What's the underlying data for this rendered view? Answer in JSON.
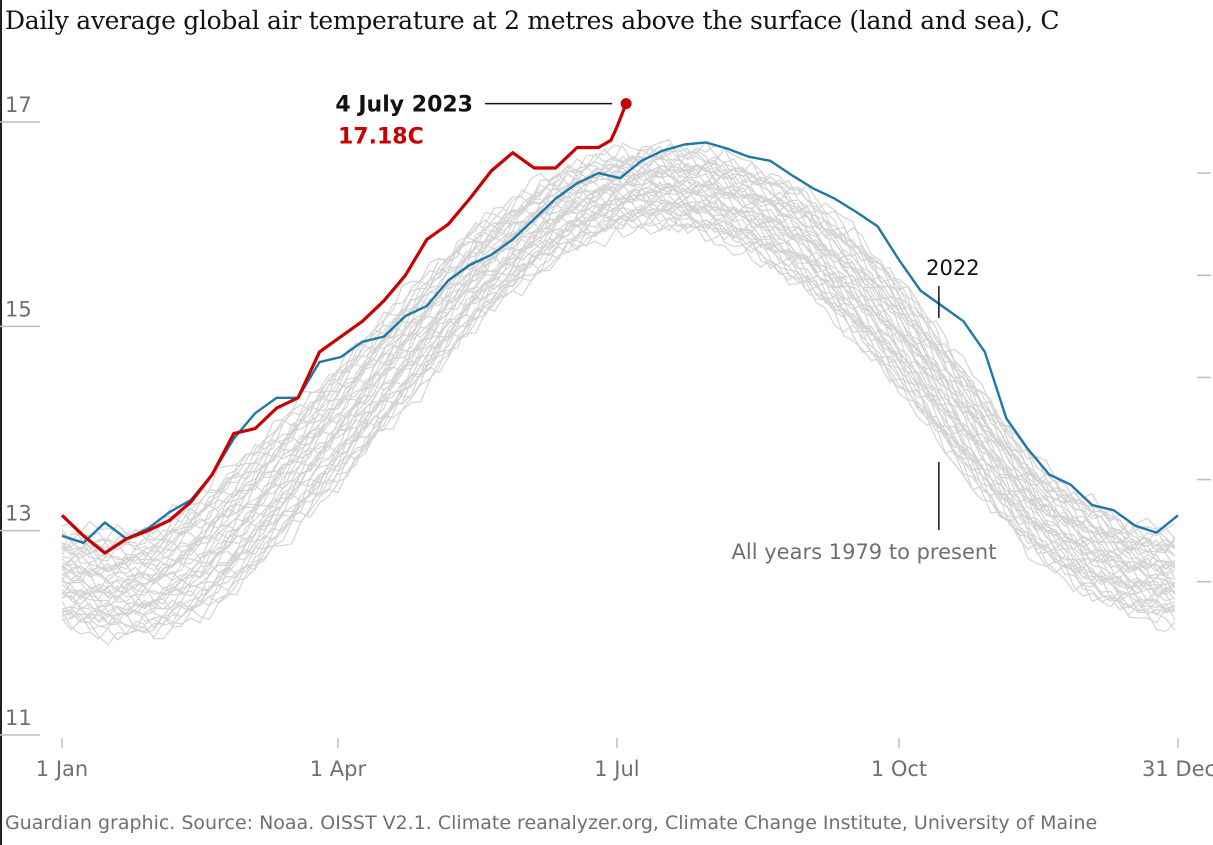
{
  "title": "Daily average global air temperature at 2 metres above the surface (land and sea), C",
  "source": "Guardian graphic. Source: Noaa. OISST V2.1. Climate reanalyzer.org, Climate Change Institute, University of Maine",
  "colors": {
    "background": "#ffffff",
    "history": "#d4d4d4",
    "year2022": "#1f78a8",
    "year2023": "#c70000",
    "axis": "#bdbdbd",
    "text": "#121212",
    "muted": "#707070"
  },
  "chart_data": {
    "type": "line",
    "title": "Daily average global air temperature at 2 metres above the surface (land and sea), C",
    "xlabel": "",
    "ylabel": "C",
    "xlim": [
      1,
      365
    ],
    "ylim": [
      11,
      17
    ],
    "y_ticks": [
      {
        "value": 17,
        "label": "17"
      },
      {
        "value": 15,
        "label": "15"
      },
      {
        "value": 13,
        "label": "13"
      },
      {
        "value": 11,
        "label": "11"
      }
    ],
    "right_ticks": [
      12.5,
      13.5,
      14.5,
      15.5,
      16.5
    ],
    "x_ticks": [
      {
        "day": 1,
        "label": "1 Jan"
      },
      {
        "day": 91,
        "label": "1 Apr"
      },
      {
        "day": 182,
        "label": "1 Jul"
      },
      {
        "day": 274,
        "label": "1 Oct"
      },
      {
        "day": 365,
        "label": "31 Dec"
      }
    ],
    "history_band": {
      "name": "All years 1979 to present",
      "count": 44,
      "days": [
        1,
        15,
        32,
        46,
        60,
        74,
        91,
        105,
        121,
        135,
        152,
        166,
        182,
        196,
        213,
        227,
        244,
        258,
        274,
        288,
        305,
        319,
        335,
        349,
        365
      ],
      "low": [
        12.1,
        12.0,
        12.0,
        12.15,
        12.5,
        12.95,
        13.45,
        13.95,
        14.5,
        15.0,
        15.45,
        15.75,
        15.95,
        16.0,
        15.9,
        15.7,
        15.35,
        14.95,
        14.4,
        13.85,
        13.2,
        12.75,
        12.4,
        12.2,
        12.1
      ],
      "high": [
        13.0,
        12.95,
        13.05,
        13.35,
        13.7,
        14.1,
        14.6,
        15.05,
        15.55,
        15.95,
        16.3,
        16.55,
        16.7,
        16.75,
        16.7,
        16.55,
        16.3,
        15.95,
        15.45,
        14.9,
        14.2,
        13.65,
        13.3,
        13.05,
        12.95
      ]
    },
    "series": [
      {
        "name": "2022",
        "color": "#1f78a8",
        "x": [
          1,
          8,
          15,
          22,
          29,
          36,
          43,
          50,
          57,
          64,
          71,
          78,
          85,
          92,
          99,
          106,
          113,
          120,
          127,
          134,
          141,
          148,
          155,
          162,
          169,
          176,
          183,
          190,
          197,
          204,
          211,
          218,
          225,
          232,
          239,
          246,
          253,
          260,
          267,
          274,
          281,
          288,
          295,
          302,
          309,
          316,
          323,
          330,
          337,
          344,
          351,
          358,
          365
        ],
        "y": [
          12.95,
          12.88,
          13.08,
          12.92,
          13.02,
          13.18,
          13.3,
          13.55,
          13.9,
          14.15,
          14.3,
          14.3,
          14.65,
          14.7,
          14.85,
          14.9,
          15.1,
          15.2,
          15.45,
          15.6,
          15.7,
          15.85,
          16.05,
          16.25,
          16.4,
          16.5,
          16.45,
          16.62,
          16.72,
          16.78,
          16.8,
          16.74,
          16.66,
          16.62,
          16.48,
          16.35,
          16.25,
          16.12,
          15.98,
          15.65,
          15.35,
          15.2,
          15.05,
          14.75,
          14.1,
          13.8,
          13.55,
          13.45,
          13.25,
          13.2,
          13.05,
          12.98,
          13.15
        ]
      },
      {
        "name": "2023",
        "color": "#c70000",
        "x": [
          1,
          8,
          15,
          22,
          29,
          36,
          43,
          50,
          57,
          64,
          71,
          78,
          85,
          92,
          99,
          106,
          113,
          120,
          127,
          134,
          141,
          148,
          155,
          162,
          169,
          176,
          180,
          182,
          185
        ],
        "y": [
          13.15,
          12.95,
          12.78,
          12.92,
          13.0,
          13.1,
          13.28,
          13.55,
          13.95,
          14.0,
          14.2,
          14.3,
          14.75,
          14.9,
          15.05,
          15.25,
          15.5,
          15.85,
          16.0,
          16.25,
          16.52,
          16.7,
          16.55,
          16.55,
          16.75,
          16.75,
          16.82,
          16.95,
          17.18
        ]
      }
    ],
    "annotations": {
      "record_date": "4 July 2023",
      "record_value": "17.18C",
      "record_point": {
        "day": 185,
        "value": 17.18
      },
      "label_2022": "2022",
      "label_2022_point": {
        "day": 287,
        "value": 15.0
      },
      "label_all_years": "All years 1979 to present",
      "label_all_years_point": {
        "day": 287,
        "value": 14.5
      }
    }
  }
}
